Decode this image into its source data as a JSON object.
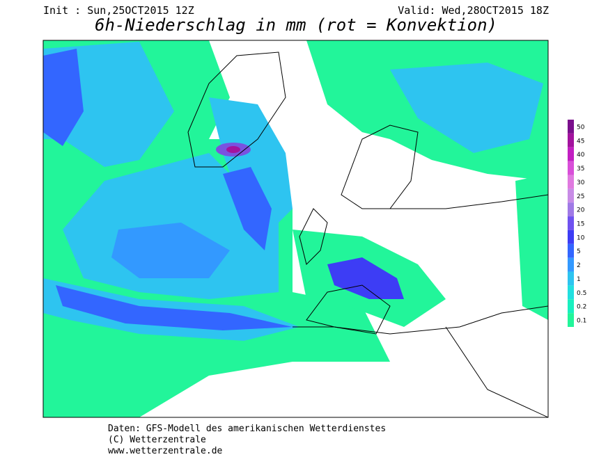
{
  "header": {
    "init": "Init : Sun,25OCT2015 12Z",
    "valid": "Valid: Wed,28OCT2015 18Z",
    "title": "6h-Niederschlag in mm (rot = Konvektion)"
  },
  "legend": {
    "levels": [
      {
        "label": "50",
        "color": "#7a0f8c"
      },
      {
        "label": "45",
        "color": "#a3139e"
      },
      {
        "label": "40",
        "color": "#c21fc2"
      },
      {
        "label": "35",
        "color": "#d94fd9"
      },
      {
        "label": "30",
        "color": "#e07ae0"
      },
      {
        "label": "25",
        "color": "#c88ce6"
      },
      {
        "label": "20",
        "color": "#a07ae6"
      },
      {
        "label": "15",
        "color": "#6f52f0"
      },
      {
        "label": "10",
        "color": "#3d3df5"
      },
      {
        "label": "5",
        "color": "#3366ff"
      },
      {
        "label": "2",
        "color": "#3399ff"
      },
      {
        "label": "1",
        "color": "#2ec4f0"
      },
      {
        "label": "0.5",
        "color": "#22e0e0"
      },
      {
        "label": "0.2",
        "color": "#19f0c0"
      },
      {
        "label": "0.1",
        "color": "#22f59a"
      }
    ]
  },
  "footer": {
    "source": "Daten: GFS-Modell des amerikanischen Wetterdienstes",
    "copyright": "(C) Wetterzentrale",
    "url": "www.wetterzentrale.de"
  }
}
